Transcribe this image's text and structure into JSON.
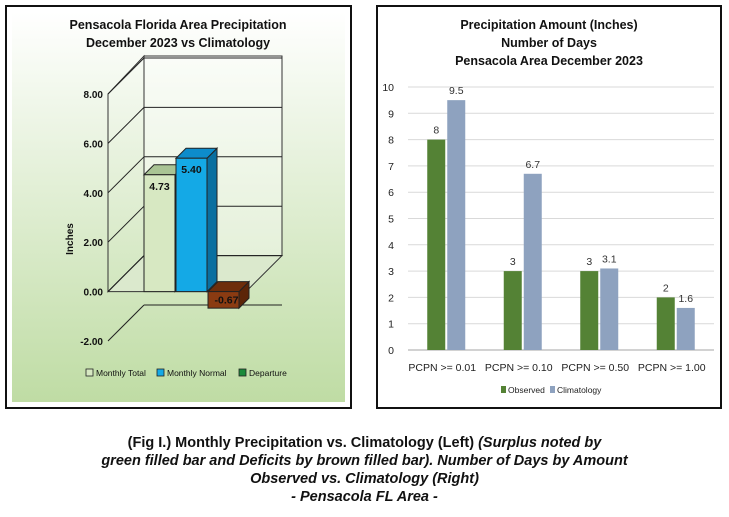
{
  "chart_data": [
    {
      "type": "bar",
      "title": "Pensacola Florida Area Precipitation",
      "subtitle": "December 2023 vs Climatology",
      "ylabel": "Inches",
      "ylim": [
        -2,
        8
      ],
      "yticks": [
        "8.00",
        "6.00",
        "4.00",
        "2.00",
        "0.00",
        "-2.00"
      ],
      "series": [
        {
          "name": "Monthly Total",
          "value": 4.73,
          "label": "4.73",
          "color": "#d7e8c2"
        },
        {
          "name": "Monthly Normal",
          "value": 5.4,
          "label": "5.40",
          "color": "#14a9e6"
        },
        {
          "name": "Departure",
          "value": -0.67,
          "label": "-0.67",
          "color": "#8a3b12",
          "legend_color": "#1a8a3a"
        }
      ],
      "grid": true,
      "legend_position": "bottom"
    },
    {
      "type": "bar",
      "title": "Precipitation Amount (Inches)",
      "subtitle": "Number of Days",
      "subtitle2": "Pensacola Area December 2023",
      "categories": [
        "PCPN >= 0.01",
        "PCPN >= 0.10",
        "PCPN >= 0.50",
        "PCPN >= 1.00"
      ],
      "series": [
        {
          "name": "Observed",
          "values": [
            8,
            3,
            3,
            2
          ],
          "labels": [
            "8",
            "3",
            "3",
            "2"
          ],
          "color": "#548235"
        },
        {
          "name": "Climatology",
          "values": [
            9.5,
            6.7,
            3.1,
            1.6
          ],
          "labels": [
            "9.5",
            "6.7",
            "3.1",
            "1.6"
          ],
          "color": "#8ea2bf"
        }
      ],
      "ylim": [
        0,
        10
      ],
      "yticks": [
        "0",
        "1",
        "2",
        "3",
        "4",
        "5",
        "6",
        "7",
        "8",
        "9",
        "10"
      ],
      "grid": true,
      "legend_position": "bottom"
    }
  ],
  "caption": {
    "line1_plain": "(Fig I.) Monthly Precipitation vs. Climatology (Left) ",
    "line1_italic": "(Surplus noted by",
    "line2": "green filled bar and Deficits by brown filled bar). Number of Days by Amount",
    "line3": "Observed vs. Climatology (Right)",
    "line4": "- Pensacola FL Area -"
  }
}
